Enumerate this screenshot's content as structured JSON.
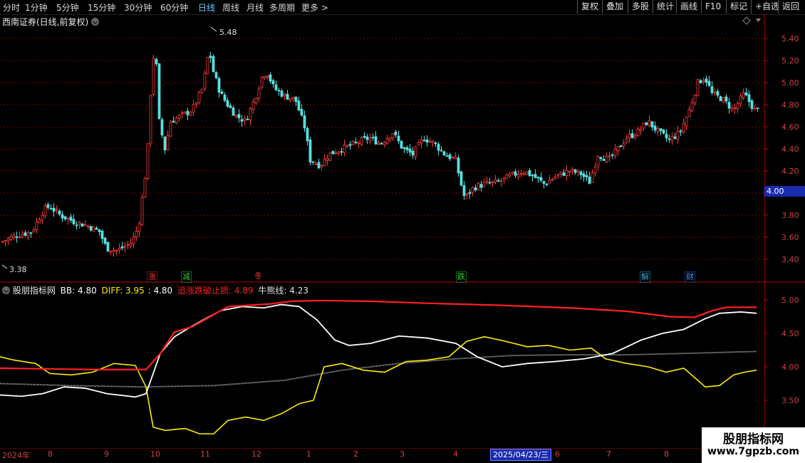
{
  "toolbar": {
    "periods": [
      "分时",
      "1分钟",
      "5分钟",
      "15分钟",
      "30分钟",
      "60分钟",
      "日线",
      "周线",
      "月线",
      "多周期",
      "更多 >"
    ],
    "active_period": "日线",
    "right_buttons": [
      "复权",
      "叠加",
      "多股",
      "统计",
      "画线",
      "F10",
      "标记",
      "+自选",
      "返回"
    ]
  },
  "stock": {
    "title": "西南证券(日线,前复权)",
    "high_marker": "5.48",
    "low_marker": "3.38",
    "current_price_tag": "4.00",
    "price_axis_labels": [
      "5.40",
      "5.20",
      "5.00",
      "4.80",
      "4.60",
      "4.40",
      "4.20",
      "4.00",
      "3.80",
      "3.60",
      "3.40"
    ]
  },
  "events": [
    {
      "label": "涨",
      "color": "#ff3333"
    },
    {
      "label": "减",
      "color": "#33cc33"
    },
    {
      "label": "冬",
      "color": "#ff3333"
    },
    {
      "label": "跌",
      "color": "#33cc33"
    },
    {
      "label": "解",
      "color": "#33aacc"
    },
    {
      "label": "财",
      "color": "#3399ff"
    }
  ],
  "indicator": {
    "name": "股朋指标网",
    "bb_label": "BB: 4.80",
    "diff_label": "DIFF: 3.95",
    "value3": ": 4.80",
    "stop_label": "追涨跌破止损: 4.89",
    "bull_label": "牛熊线: 4.23",
    "axis_labels": [
      "5.00",
      "4.50",
      "4.00",
      "3.50"
    ]
  },
  "dates": {
    "months": [
      "2024年",
      "8",
      "9",
      "10",
      "11",
      "12",
      "1",
      "2",
      "3",
      "4",
      "6",
      "7",
      "8"
    ],
    "cursor_date": "2025/04/23/三"
  },
  "watermark": {
    "title": "股朋指标网",
    "url": "www.7gpzb.com"
  },
  "colors": {
    "up": "#ff3b3b",
    "down": "#55e0e0",
    "grid": "#7a0000",
    "bb": "#ffffff",
    "diff": "#ffee00",
    "stop": "#ff2020",
    "bull": "#b0b0b0",
    "tag_bg": "#1a2bb0"
  }
}
